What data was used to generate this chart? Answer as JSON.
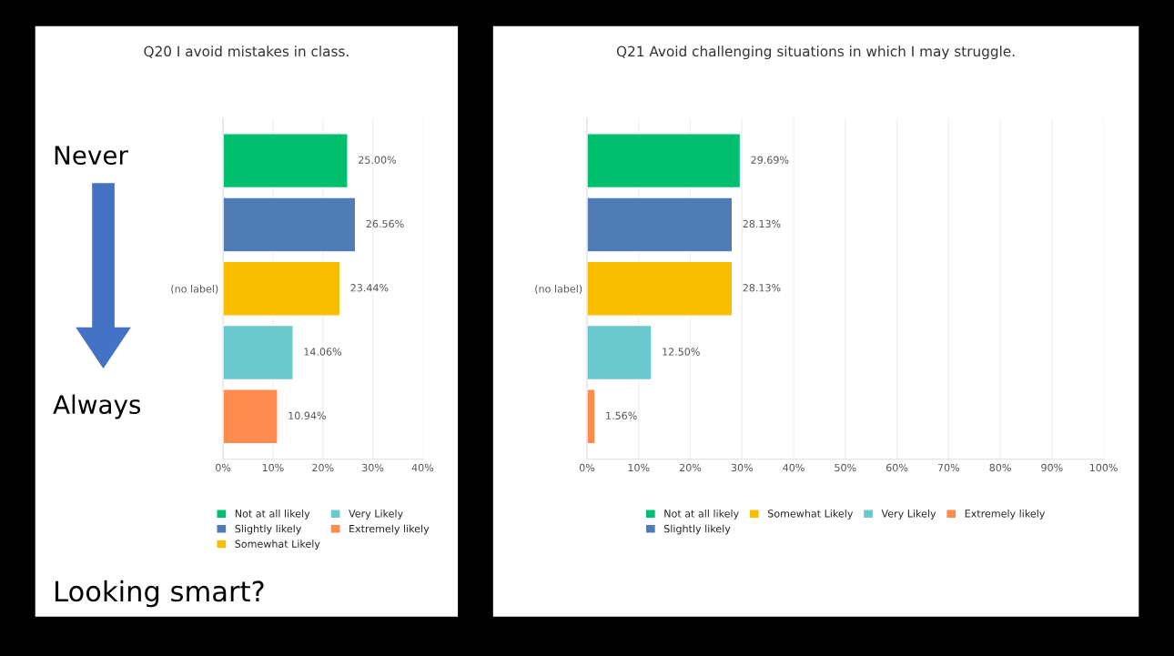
{
  "chart_data": [
    {
      "type": "bar",
      "orientation": "horizontal",
      "title": "Q20 I avoid mistakes in class.",
      "categories": [
        "(no label)"
      ],
      "series": [
        {
          "name": "Not at all likely",
          "color": "#00bf6f",
          "values": [
            25.0
          ],
          "value_labels": [
            "25.00%"
          ]
        },
        {
          "name": "Slightly likely",
          "color": "#507cb6",
          "values": [
            26.56
          ],
          "value_labels": [
            "26.56%"
          ]
        },
        {
          "name": "Somewhat Likely",
          "color": "#f9be00",
          "values": [
            23.44
          ],
          "value_labels": [
            "23.44%"
          ]
        },
        {
          "name": "Very Likely",
          "color": "#6bc8cd",
          "values": [
            14.06
          ],
          "value_labels": [
            "14.06%"
          ]
        },
        {
          "name": "Extremely likely",
          "color": "#ff8b4f",
          "values": [
            10.94
          ],
          "value_labels": [
            "10.94%"
          ]
        }
      ],
      "xlim": [
        0,
        40
      ],
      "xticks": [
        {
          "value": 0,
          "label": "0%"
        },
        {
          "value": 10,
          "label": "10%"
        },
        {
          "value": 20,
          "label": "20%"
        },
        {
          "value": 30,
          "label": "30%"
        },
        {
          "value": 40,
          "label": "40%"
        }
      ],
      "grid": "x",
      "legend": "bottom",
      "annotations": [
        "Never",
        "Always",
        "Looking smart?"
      ]
    },
    {
      "type": "bar",
      "orientation": "horizontal",
      "title": "Q21 Avoid challenging situations in which I may struggle.",
      "categories": [
        "(no label)"
      ],
      "series": [
        {
          "name": "Not at all likely",
          "color": "#00bf6f",
          "values": [
            29.69
          ],
          "value_labels": [
            "29.69%"
          ]
        },
        {
          "name": "Slightly likely",
          "color": "#507cb6",
          "values": [
            28.13
          ],
          "value_labels": [
            "28.13%"
          ]
        },
        {
          "name": "Somewhat Likely",
          "color": "#f9be00",
          "values": [
            28.13
          ],
          "value_labels": [
            "28.13%"
          ]
        },
        {
          "name": "Very Likely",
          "color": "#6bc8cd",
          "values": [
            12.5
          ],
          "value_labels": [
            "12.50%"
          ]
        },
        {
          "name": "Extremely likely",
          "color": "#ff8b4f",
          "values": [
            1.56
          ],
          "value_labels": [
            "1.56%"
          ]
        }
      ],
      "xlim": [
        0,
        100
      ],
      "xticks": [
        {
          "value": 0,
          "label": "0%"
        },
        {
          "value": 10,
          "label": "10%"
        },
        {
          "value": 20,
          "label": "20%"
        },
        {
          "value": 30,
          "label": "30%"
        },
        {
          "value": 40,
          "label": "40%"
        },
        {
          "value": 50,
          "label": "50%"
        },
        {
          "value": 60,
          "label": "60%"
        },
        {
          "value": 70,
          "label": "70%"
        },
        {
          "value": 80,
          "label": "80%"
        },
        {
          "value": 90,
          "label": "90%"
        },
        {
          "value": 100,
          "label": "100%"
        }
      ],
      "grid": "x",
      "legend": "bottom"
    }
  ]
}
